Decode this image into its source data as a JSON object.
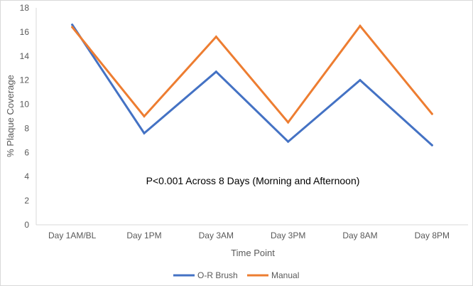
{
  "chart_data": {
    "type": "line",
    "categories": [
      "Day 1AM/BL",
      "Day 1PM",
      "Day 3AM",
      "Day 3PM",
      "Day 8AM",
      "Day 8PM"
    ],
    "series": [
      {
        "name": "O-R Brush",
        "color": "#4472C4",
        "values": [
          16.6,
          7.6,
          12.7,
          6.9,
          12.0,
          6.6
        ]
      },
      {
        "name": "Manual",
        "color": "#ED7D31",
        "values": [
          16.4,
          9.0,
          15.6,
          8.5,
          16.5,
          9.2
        ]
      }
    ],
    "title": "",
    "xlabel": "Time Point",
    "ylabel": "% Plaque Coverage",
    "ylim": [
      0,
      18
    ],
    "yticks": [
      "0",
      "2",
      "4",
      "6",
      "8",
      "10",
      "12",
      "14",
      "16",
      "18"
    ],
    "annotation": "P<0.001 Across 8 Days (Morning and Afternoon)",
    "grid": false,
    "legend_position": "bottom"
  }
}
